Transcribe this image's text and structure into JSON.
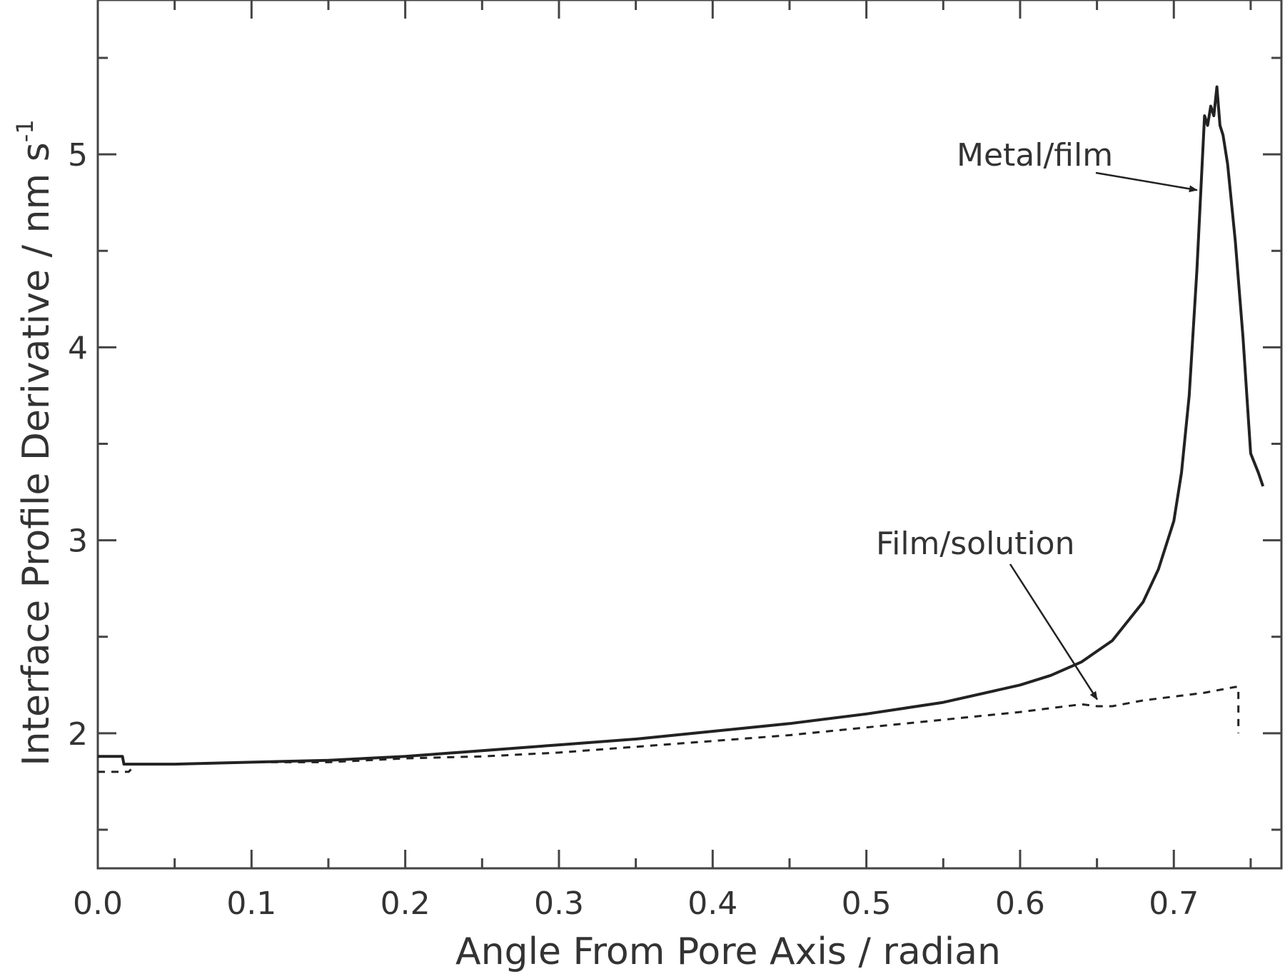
{
  "chart_data": {
    "type": "line",
    "title": "",
    "xlabel": "Angle From Pore Axis / radian",
    "ylabel": "Interface Profile Derivative / nm s",
    "ylabel_superscript": "-1",
    "xlim": [
      0.0,
      0.77
    ],
    "ylim": [
      1.3,
      5.8
    ],
    "x_ticks": [
      0.0,
      0.1,
      0.2,
      0.3,
      0.4,
      0.5,
      0.6,
      0.7
    ],
    "x_tick_labels": [
      "0.0",
      "0.1",
      "0.2",
      "0.3",
      "0.4",
      "0.5",
      "0.6",
      "0.7"
    ],
    "y_ticks": [
      2,
      3,
      4,
      5
    ],
    "y_tick_labels": [
      "2",
      "3",
      "4",
      "5"
    ],
    "grid": false,
    "colors": {
      "axis": "#444444",
      "series": "#222222"
    },
    "series": [
      {
        "name": "Metal/film",
        "style": "solid",
        "x": [
          0.0,
          0.016,
          0.017,
          0.02,
          0.025,
          0.05,
          0.1,
          0.15,
          0.2,
          0.25,
          0.3,
          0.35,
          0.4,
          0.45,
          0.5,
          0.55,
          0.6,
          0.62,
          0.64,
          0.66,
          0.68,
          0.69,
          0.7,
          0.705,
          0.71,
          0.715,
          0.72,
          0.722,
          0.724,
          0.726,
          0.728,
          0.73,
          0.732,
          0.735,
          0.74,
          0.745,
          0.75,
          0.755,
          0.758
        ],
        "values": [
          1.88,
          1.88,
          1.84,
          1.84,
          1.84,
          1.84,
          1.85,
          1.86,
          1.88,
          1.91,
          1.94,
          1.97,
          2.01,
          2.05,
          2.1,
          2.16,
          2.25,
          2.3,
          2.37,
          2.48,
          2.68,
          2.85,
          3.1,
          3.35,
          3.75,
          4.4,
          5.2,
          5.15,
          5.25,
          5.2,
          5.35,
          5.15,
          5.1,
          4.95,
          4.55,
          4.05,
          3.45,
          3.35,
          3.28
        ]
      },
      {
        "name": "Film/solution",
        "style": "dashed",
        "x": [
          0.0,
          0.02,
          0.025,
          0.05,
          0.1,
          0.15,
          0.2,
          0.25,
          0.3,
          0.35,
          0.4,
          0.45,
          0.5,
          0.55,
          0.6,
          0.64,
          0.65,
          0.66,
          0.68,
          0.7,
          0.72,
          0.74,
          0.742,
          0.742
        ],
        "values": [
          1.8,
          1.8,
          1.84,
          1.84,
          1.85,
          1.85,
          1.87,
          1.88,
          1.9,
          1.93,
          1.96,
          1.99,
          2.03,
          2.07,
          2.11,
          2.15,
          2.14,
          2.14,
          2.17,
          2.19,
          2.21,
          2.24,
          2.24,
          2.0
        ]
      }
    ],
    "annotations": [
      {
        "text": "Metal/film",
        "target_x": 0.717,
        "target_y": 4.8
      },
      {
        "text": "Film/solution",
        "target_x": 0.652,
        "target_y": 2.16
      }
    ]
  }
}
